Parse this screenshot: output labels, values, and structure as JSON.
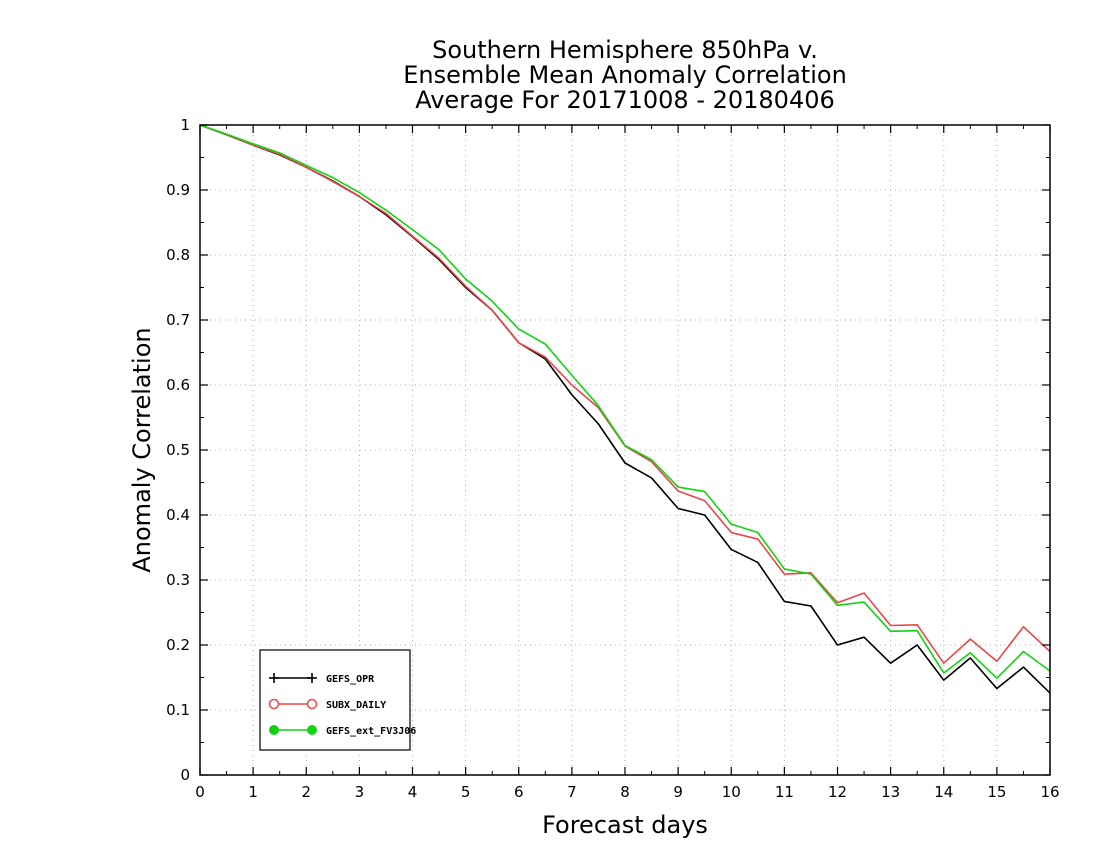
{
  "chart_data": {
    "type": "line",
    "title": [
      "Southern Hemisphere 850hPa v.",
      "Ensemble Mean Anomaly Correlation",
      "Average For 20171008 - 20180406"
    ],
    "xlabel": "Forecast days",
    "ylabel": "Anomaly Correlation",
    "xlim": [
      0,
      16
    ],
    "ylim": [
      0,
      1
    ],
    "xticks": [
      0,
      1,
      2,
      3,
      4,
      5,
      6,
      7,
      8,
      9,
      10,
      11,
      12,
      13,
      14,
      15,
      16
    ],
    "xtick_labels": [
      "0",
      "1",
      "2",
      "3",
      "4",
      "5",
      "6",
      "7",
      "8",
      "9",
      "10",
      "11",
      "12",
      "13",
      "14",
      "15",
      "16"
    ],
    "yticks": [
      0,
      0.1,
      0.2,
      0.3,
      0.4,
      0.5,
      0.6,
      0.7,
      0.8,
      0.9,
      1
    ],
    "ytick_labels": [
      "0",
      "0.1",
      "0.2",
      "0.3",
      "0.4",
      "0.5",
      "0.6",
      "0.7",
      "0.8",
      "0.9",
      "1"
    ],
    "grid": true,
    "legend_position": "bottom-left",
    "x": [
      0,
      0.5,
      1,
      1.5,
      2,
      2.5,
      3,
      3.5,
      4,
      4.5,
      5,
      5.5,
      6,
      6.5,
      7,
      7.5,
      8,
      8.5,
      9,
      9.5,
      10,
      10.5,
      11,
      11.5,
      12,
      12.5,
      13,
      13.5,
      14,
      14.5,
      15,
      15.5,
      16
    ],
    "series": [
      {
        "name": "GEFS_OPR",
        "color": "#000000",
        "marker": "plus",
        "values": [
          1.0,
          0.985,
          0.969,
          0.954,
          0.935,
          0.914,
          0.89,
          0.862,
          0.828,
          0.793,
          0.75,
          0.715,
          0.665,
          0.64,
          0.585,
          0.54,
          0.48,
          0.457,
          0.41,
          0.4,
          0.347,
          0.327,
          0.267,
          0.26,
          0.2,
          0.212,
          0.172,
          0.2,
          0.146,
          0.18,
          0.133,
          0.166,
          0.126
        ]
      },
      {
        "name": "SUBX_DAILY",
        "color": "#e8474a",
        "marker": "open-circle",
        "values": [
          1.0,
          0.985,
          0.969,
          0.955,
          0.935,
          0.913,
          0.89,
          0.864,
          0.829,
          0.795,
          0.752,
          0.715,
          0.665,
          0.643,
          0.6,
          0.565,
          0.506,
          0.482,
          0.437,
          0.422,
          0.373,
          0.363,
          0.309,
          0.311,
          0.265,
          0.28,
          0.23,
          0.231,
          0.172,
          0.209,
          0.175,
          0.228,
          0.19
        ]
      },
      {
        "name": "GEFS_ext_FV3J06",
        "color": "#11d411",
        "marker": "filled-circle",
        "values": [
          1.0,
          0.986,
          0.971,
          0.957,
          0.938,
          0.919,
          0.896,
          0.869,
          0.839,
          0.808,
          0.763,
          0.729,
          0.686,
          0.663,
          0.615,
          0.568,
          0.507,
          0.485,
          0.443,
          0.436,
          0.386,
          0.373,
          0.317,
          0.309,
          0.261,
          0.266,
          0.221,
          0.222,
          0.157,
          0.188,
          0.149,
          0.19,
          0.16
        ]
      }
    ]
  }
}
